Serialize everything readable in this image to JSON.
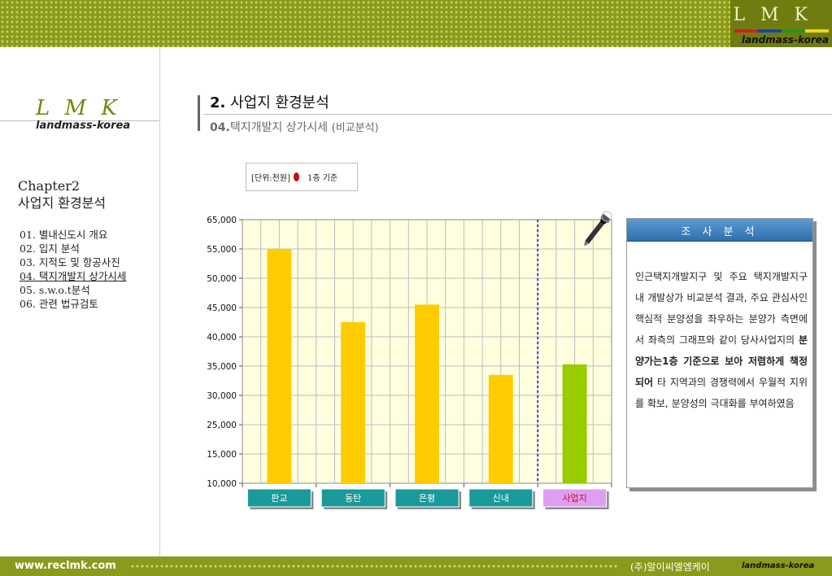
{
  "brand": {
    "logo": "L M K",
    "tagline": "landmass-korea",
    "stripe_colors": [
      "#d81e1e",
      "#1e3fb0",
      "#1a9a1a",
      "#f2d21a"
    ]
  },
  "sidebar": {
    "chapter": "Chapter2",
    "chapter_title": "사업지 환경분석",
    "items": [
      {
        "label": "01. 별내신도시 개요"
      },
      {
        "label": "02. 입지 분석"
      },
      {
        "label": "03. 지적도 및 항공사진"
      },
      {
        "label": "04. 택지개발지 상가시세",
        "current": true
      },
      {
        "label": "05. s.w.o.t분석"
      },
      {
        "label": "06. 관련 법규검토"
      }
    ]
  },
  "header": {
    "number": "2.",
    "title": "사업지 환경분석",
    "sub_number": "04.",
    "subtitle": "택지개발지 상가시세",
    "subtitle_note": "(비교분석)"
  },
  "unit_legend": {
    "unit": "[단위:천원]",
    "basis": "1층 기준"
  },
  "chart_data": {
    "type": "bar",
    "categories": [
      "판교",
      "동탄",
      "은평",
      "신내",
      "사업지"
    ],
    "values": [
      55000,
      42500,
      45500,
      33500,
      35300
    ],
    "y_ticks": [
      10000,
      15000,
      25000,
      30000,
      35000,
      40000,
      45000,
      50000,
      55000,
      65000
    ],
    "y_tick_labels": [
      "10,000",
      "15,000",
      "25,000",
      "30,000",
      "35,000",
      "40,000",
      "45,000",
      "50,000",
      "55,000",
      "65,000"
    ],
    "bar_colors": [
      "#ffcc00",
      "#ffcc00",
      "#ffcc00",
      "#ffcc00",
      "#99cc00"
    ],
    "label_bg_colors": [
      "#1a9a9a",
      "#1a9a9a",
      "#1a9a9a",
      "#1a9a9a",
      "#dda0f0"
    ],
    "label_text_colors": [
      "#ffffff",
      "#ffffff",
      "#ffffff",
      "#ffffff",
      "#e0001a"
    ],
    "separator_after_index": 3,
    "grid": true,
    "plot_bg": "#ffffe0"
  },
  "analysis": {
    "heading": "조 사 분 석",
    "text_before": "인근택지개발지구 및 주요 택지개발지구 내 개발상가 비교분석 결과, 주요 관심사인 핵심적 분양성을 좌우하는  분양가 측면에서 좌측의 그래프와 같이 당사사업지의 ",
    "text_bold": "분양가는1층 기준으로 보아 저렴하게 책정되어",
    "text_after": " 타 지역과의 경쟁력에서 우월적 지위를  확보, 분양성의 극대화를 부여하였음"
  },
  "footer": {
    "url": "www.reclmk.com",
    "company": "(주)알이씨엘엠케이",
    "tagline": "landmass-korea"
  }
}
